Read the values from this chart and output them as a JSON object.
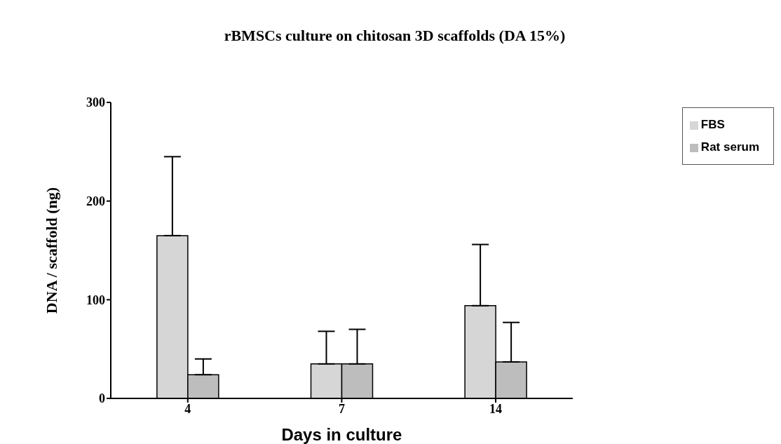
{
  "chart_data": {
    "type": "bar",
    "title": "rBMSCs culture on chitosan 3D scaffolds (DA 15%)",
    "xlabel": "Days in culture",
    "ylabel": "DNA / scaffold (ng)",
    "categories": [
      "4",
      "7",
      "14"
    ],
    "series": [
      {
        "name": "FBS",
        "color": "#d6d6d6",
        "values": [
          165,
          35,
          94
        ],
        "errors": [
          [
            165,
            245
          ],
          [
            35,
            68
          ],
          [
            94,
            156
          ]
        ]
      },
      {
        "name": "Rat serum",
        "color": "#bdbdbd",
        "values": [
          24,
          35,
          37
        ],
        "errors": [
          [
            24,
            40
          ],
          [
            35,
            70
          ],
          [
            37,
            77
          ]
        ]
      }
    ],
    "ylim": [
      0,
      300
    ],
    "yticks": [
      0,
      100,
      200,
      300
    ],
    "grid": false,
    "legend": "top right"
  }
}
